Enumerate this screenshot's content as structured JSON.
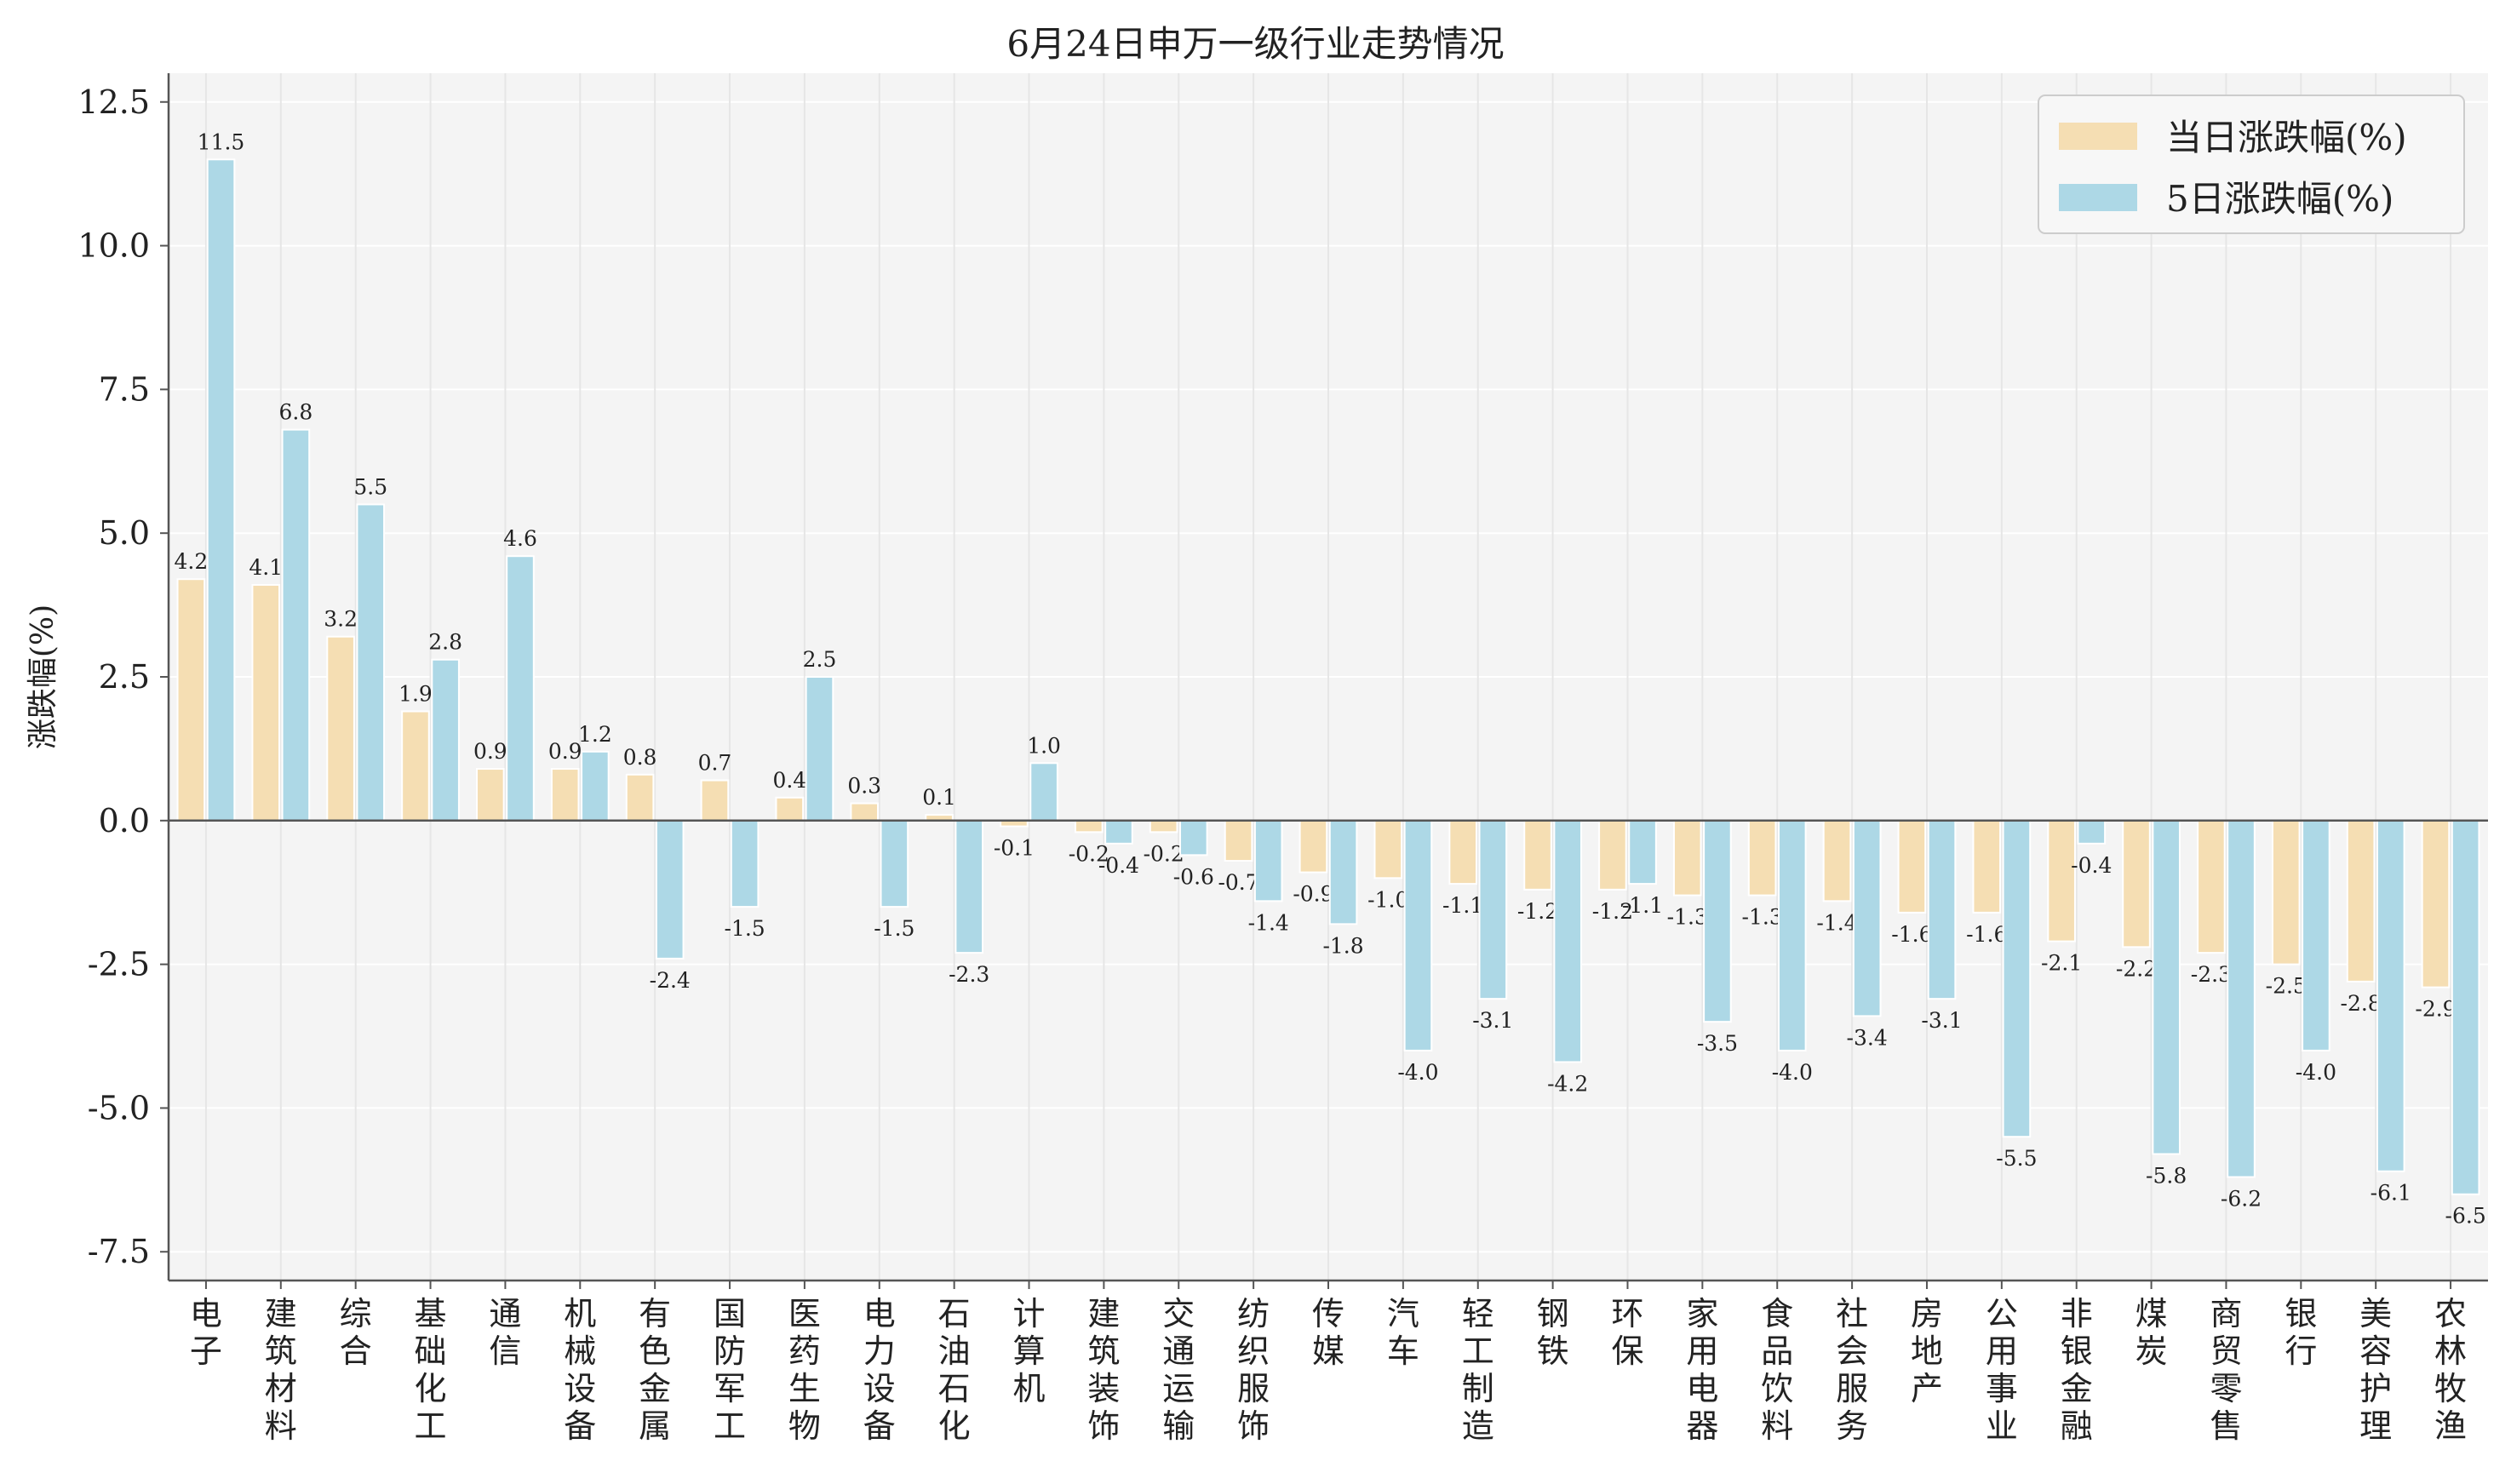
{
  "chart_data": {
    "type": "bar",
    "title": "6月24日申万一级行业走势情况",
    "ylabel": "涨跌幅(%)",
    "xlabel": "",
    "ylim": [
      -8.0,
      13.0
    ],
    "yticks": [
      "12.5",
      "10.0",
      "7.5",
      "5.0",
      "2.5",
      "0.0",
      "-2.5",
      "-5.0",
      "-7.5"
    ],
    "ytick_values": [
      12.5,
      10.0,
      7.5,
      5.0,
      2.5,
      0.0,
      -2.5,
      -5.0,
      -7.5
    ],
    "grid": true,
    "legend_position": "top-right",
    "categories": [
      "电子",
      "建筑材料",
      "综合",
      "基础化工",
      "通信",
      "机械设备",
      "有色金属",
      "国防军工",
      "医药生物",
      "电力设备",
      "石油石化",
      "计算机",
      "建筑装饰",
      "交通运输",
      "纺织服饰",
      "传媒",
      "汽车",
      "轻工制造",
      "钢铁",
      "环保",
      "家用电器",
      "食品饮料",
      "社会服务",
      "房地产",
      "公用事业",
      "非银金融",
      "煤炭",
      "商贸零售",
      "银行",
      "美容护理",
      "农林牧渔"
    ],
    "series": [
      {
        "name": "当日涨跌幅(%)",
        "color": "#f5deb3",
        "values": [
          4.2,
          4.1,
          3.2,
          1.9,
          0.9,
          0.9,
          0.8,
          0.7,
          0.4,
          0.3,
          0.1,
          -0.1,
          -0.2,
          -0.2,
          -0.7,
          -0.9,
          -1.0,
          -1.1,
          -1.2,
          -1.2,
          -1.3,
          -1.3,
          -1.4,
          -1.6,
          -1.6,
          -2.1,
          -2.2,
          -2.3,
          -2.5,
          -2.8,
          -2.9
        ],
        "labels": [
          "4.2",
          "4.1",
          "3.2",
          "1.9",
          "0.9",
          "0.9",
          "0.8",
          "0.7",
          "0.4",
          "0.3",
          "0.1",
          "-0.1",
          "-0.2",
          "-0.2",
          "-0.7",
          "-0.9",
          "-1.0",
          "-1.1",
          "-1.2",
          "-1.2",
          "-1.3",
          "-1.3",
          "-1.4",
          "-1.6",
          "-1.6",
          "-2.1",
          "-2.2",
          "-2.3",
          "-2.5",
          "-2.8",
          "-2.9"
        ]
      },
      {
        "name": "5日涨跌幅(%)",
        "color": "#add8e6",
        "values": [
          11.5,
          6.8,
          5.5,
          2.8,
          4.6,
          1.2,
          -2.4,
          -1.5,
          2.5,
          -1.5,
          -2.3,
          1.0,
          -0.4,
          -0.6,
          -1.4,
          -1.8,
          -4.0,
          -3.1,
          -4.2,
          -1.1,
          -3.5,
          -4.0,
          -3.4,
          -3.1,
          -5.5,
          -0.4,
          -5.8,
          -6.2,
          -4.0,
          -6.1,
          -6.5
        ],
        "labels": [
          "11.5",
          "6.8",
          "5.5",
          "2.8",
          "4.6",
          "1.2",
          "-2.4",
          "-1.5",
          "2.5",
          "-1.5",
          "-2.3",
          "1.0",
          "-0.4",
          "-0.6",
          "-1.4",
          "-1.8",
          "-4.0",
          "-3.1",
          "-4.2",
          "-1.1",
          "-3.5",
          "-4.0",
          "-3.4",
          "-3.1",
          "-5.5",
          "-0.4",
          "-5.8",
          "-6.2",
          "-4.0",
          "-6.1",
          "-6.5"
        ]
      }
    ]
  }
}
